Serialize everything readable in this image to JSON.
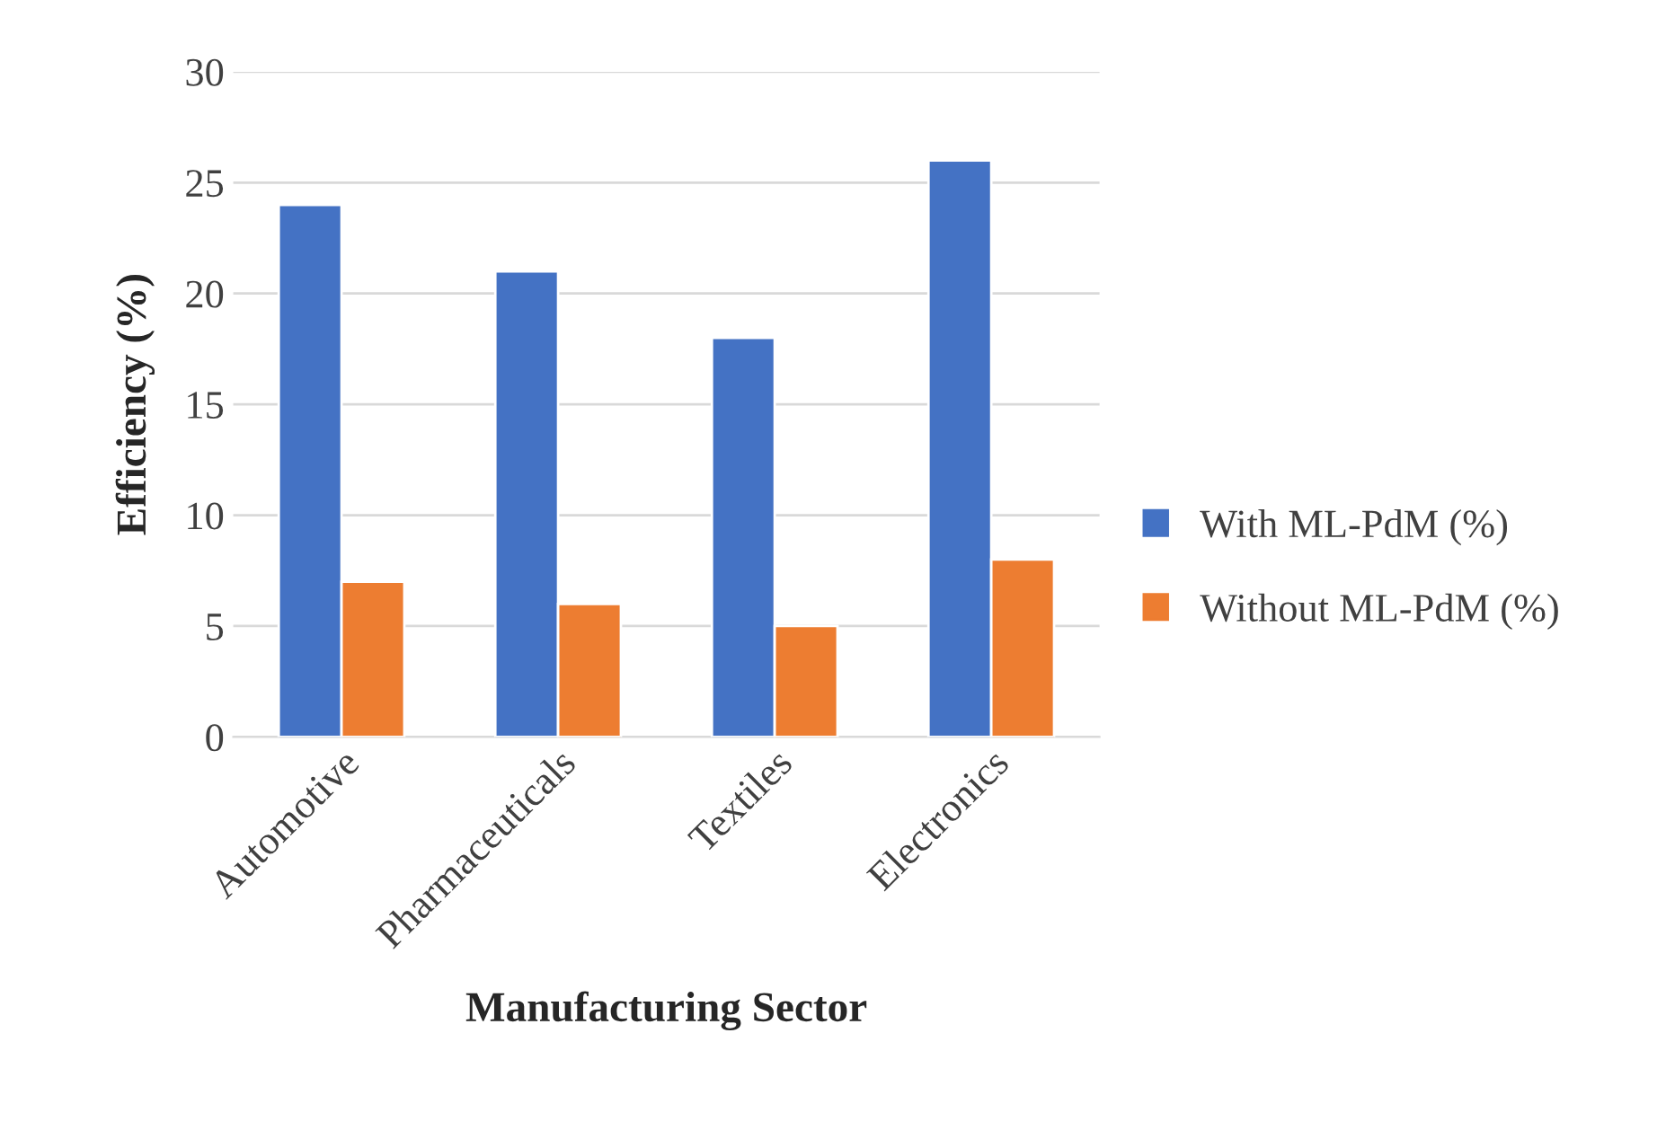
{
  "chart_data": {
    "type": "bar",
    "xlabel": "Manufacturing Sector",
    "ylabel": "Efficiency (%)",
    "categories": [
      "Automotive",
      "Pharmaceuticals",
      "Textiles",
      "Electronics"
    ],
    "series": [
      {
        "name": "With ML-PdM (%)",
        "color": "#4472c4",
        "values": [
          24,
          21,
          18,
          26
        ]
      },
      {
        "name": "Without ML-PdM (%)",
        "color": "#ed7d31",
        "values": [
          7,
          6,
          5,
          8
        ]
      }
    ],
    "ylim": [
      0,
      30
    ],
    "yticks": [
      0,
      5,
      10,
      15,
      20,
      25,
      30
    ],
    "grid": "y",
    "legend": "right"
  }
}
